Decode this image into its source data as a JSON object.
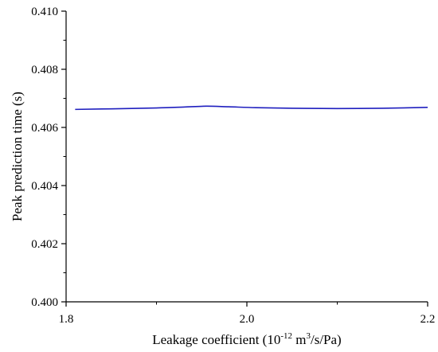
{
  "chart_data": {
    "type": "line",
    "xlabel": {
      "prefix": "Leakage coefficient (10",
      "exp1": "-12",
      "mid": " m",
      "exp2": "3",
      "suffix": "/s/Pa)"
    },
    "ylabel": "Peak prediction time (s)",
    "xlim": [
      1.8,
      2.2
    ],
    "ylim": [
      0.4,
      0.41
    ],
    "x_ticks": [
      1.8,
      2.0,
      2.2
    ],
    "x_tick_labels": [
      "1.8",
      "2.0",
      "2.2"
    ],
    "x_minor_ticks": [
      1.9,
      2.1
    ],
    "y_ticks": [
      0.4,
      0.402,
      0.404,
      0.406,
      0.408,
      0.41
    ],
    "y_tick_labels": [
      "0.400",
      "0.402",
      "0.404",
      "0.406",
      "0.408",
      "0.410"
    ],
    "y_minor_ticks": [
      0.401,
      0.403,
      0.405,
      0.407,
      0.409
    ],
    "grid": false,
    "legend": "none",
    "line_color": "#1f1fbf",
    "series": [
      {
        "x": [
          1.81,
          1.85,
          1.9,
          1.93,
          1.955,
          1.98,
          2.01,
          2.05,
          2.1,
          2.15,
          2.2
        ],
        "y": [
          0.40662,
          0.40664,
          0.40667,
          0.4067,
          0.40673,
          0.40671,
          0.40668,
          0.40666,
          0.40665,
          0.40666,
          0.40669
        ]
      }
    ]
  }
}
